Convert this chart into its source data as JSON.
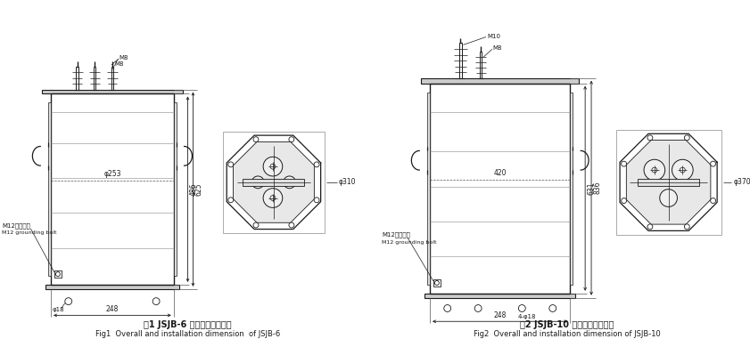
{
  "fig1_title_cn": "图1 JSJB-6 外型及安装尺寸图",
  "fig1_title_en": "Fig1  Overall and installation dimension  of JSJB-6",
  "fig2_title_cn": "图2 JSJB-10 外型及安装尺寸图",
  "fig2_title_en": "Fig2  Overall and installation dimension of JSJB-10",
  "bg_color": "#ffffff",
  "line_color": "#1a1a1a",
  "dim_color": "#1a1a1a"
}
